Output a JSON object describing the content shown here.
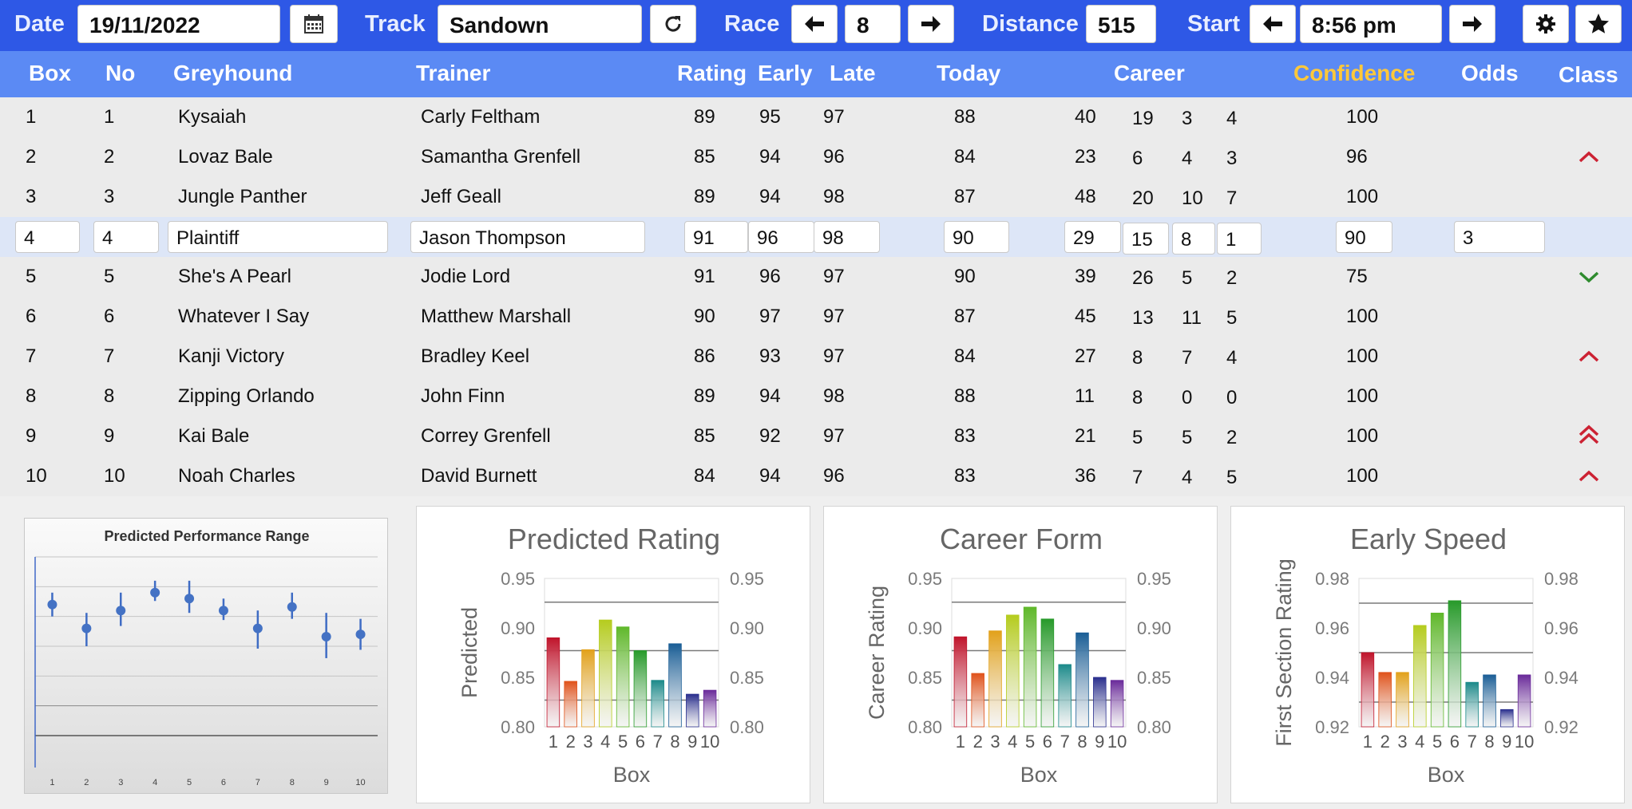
{
  "topbar": {
    "date_label": "Date",
    "date_value": "19/11/2022",
    "track_label": "Track",
    "track_value": "Sandown",
    "race_label": "Race",
    "race_value": "8",
    "distance_label": "Distance",
    "distance_value": "515",
    "start_label": "Start",
    "start_value": "8:56 pm"
  },
  "columns": {
    "box": "Box",
    "no": "No",
    "greyhound": "Greyhound",
    "trainer": "Trainer",
    "rating": "Rating",
    "early": "Early",
    "late": "Late",
    "today": "Today",
    "career": "Career",
    "confidence": "Confidence",
    "odds": "Odds",
    "class": "Class"
  },
  "rows": [
    {
      "box": "1",
      "no": "1",
      "greyhound": "Kysaiah",
      "trainer": "Carly Feltham",
      "rating": "89",
      "early": "95",
      "late": "97",
      "today": "88",
      "c1": "40",
      "c2": "19",
      "c3": "3",
      "c4": "4",
      "confidence": "100",
      "odds": "",
      "class_icon": ""
    },
    {
      "box": "2",
      "no": "2",
      "greyhound": "Lovaz Bale",
      "trainer": "Samantha Grenfell",
      "rating": "85",
      "early": "94",
      "late": "96",
      "today": "84",
      "c1": "23",
      "c2": "6",
      "c3": "4",
      "c4": "3",
      "confidence": "96",
      "odds": "",
      "class_icon": "chevron-up-icon"
    },
    {
      "box": "3",
      "no": "3",
      "greyhound": "Jungle Panther",
      "trainer": "Jeff Geall",
      "rating": "89",
      "early": "94",
      "late": "98",
      "today": "87",
      "c1": "48",
      "c2": "20",
      "c3": "10",
      "c4": "7",
      "confidence": "100",
      "odds": "",
      "class_icon": ""
    },
    {
      "box": "4",
      "no": "4",
      "greyhound": "Plaintiff",
      "trainer": "Jason Thompson",
      "rating": "91",
      "early": "96",
      "late": "98",
      "today": "90",
      "c1": "29",
      "c2": "15",
      "c3": "8",
      "c4": "1",
      "confidence": "90",
      "odds": "3",
      "class_icon": ""
    },
    {
      "box": "5",
      "no": "5",
      "greyhound": "She's A Pearl",
      "trainer": "Jodie Lord",
      "rating": "91",
      "early": "96",
      "late": "97",
      "today": "90",
      "c1": "39",
      "c2": "26",
      "c3": "5",
      "c4": "2",
      "confidence": "75",
      "odds": "",
      "class_icon": "chevron-down-icon"
    },
    {
      "box": "6",
      "no": "6",
      "greyhound": "Whatever I Say",
      "trainer": "Matthew Marshall",
      "rating": "90",
      "early": "97",
      "late": "97",
      "today": "87",
      "c1": "45",
      "c2": "13",
      "c3": "11",
      "c4": "5",
      "confidence": "100",
      "odds": "",
      "class_icon": ""
    },
    {
      "box": "7",
      "no": "7",
      "greyhound": "Kanji Victory",
      "trainer": "Bradley Keel",
      "rating": "86",
      "early": "93",
      "late": "97",
      "today": "84",
      "c1": "27",
      "c2": "8",
      "c3": "7",
      "c4": "4",
      "confidence": "100",
      "odds": "",
      "class_icon": "chevron-up-icon"
    },
    {
      "box": "8",
      "no": "8",
      "greyhound": "Zipping Orlando",
      "trainer": "John Finn",
      "rating": "89",
      "early": "94",
      "late": "98",
      "today": "88",
      "c1": "11",
      "c2": "8",
      "c3": "0",
      "c4": "0",
      "confidence": "100",
      "odds": "",
      "class_icon": ""
    },
    {
      "box": "9",
      "no": "9",
      "greyhound": "Kai Bale",
      "trainer": "Correy Grenfell",
      "rating": "85",
      "early": "92",
      "late": "97",
      "today": "83",
      "c1": "21",
      "c2": "5",
      "c3": "5",
      "c4": "2",
      "confidence": "100",
      "odds": "",
      "class_icon": "double-chevron-up-icon"
    },
    {
      "box": "10",
      "no": "10",
      "greyhound": "Noah Charles",
      "trainer": "David Burnett",
      "rating": "84",
      "early": "94",
      "late": "96",
      "today": "83",
      "c1": "36",
      "c2": "7",
      "c3": "4",
      "c4": "5",
      "confidence": "100",
      "odds": "",
      "class_icon": "chevron-up-icon"
    }
  ],
  "colors": {
    "topbar": "#2e58e6",
    "header": "#5b8af4",
    "confidence_header": "#ffc83a",
    "class_up": "#cc2233",
    "class_down": "#2e8b2e"
  },
  "chart_data": [
    {
      "type": "scatter",
      "title": "Predicted Performance Range",
      "x": [
        1,
        2,
        3,
        4,
        5,
        6,
        7,
        8,
        9,
        10
      ],
      "y": [
        0.91,
        0.89,
        0.905,
        0.92,
        0.915,
        0.905,
        0.89,
        0.908,
        0.883,
        0.885
      ],
      "err_low": [
        0.9,
        0.875,
        0.892,
        0.913,
        0.903,
        0.897,
        0.873,
        0.898,
        0.865,
        0.872
      ],
      "err_high": [
        0.92,
        0.903,
        0.92,
        0.93,
        0.93,
        0.915,
        0.905,
        0.92,
        0.903,
        0.898
      ],
      "ylim": [
        0.8,
        0.95
      ],
      "grid": true
    },
    {
      "type": "bar",
      "title": "Predicted Rating",
      "xlabel": "Box",
      "ylabel": "Predicted",
      "categories": [
        "1",
        "2",
        "3",
        "4",
        "5",
        "6",
        "7",
        "8",
        "9",
        "10"
      ],
      "values": [
        0.89,
        0.846,
        0.878,
        0.908,
        0.901,
        0.877,
        0.847,
        0.884,
        0.833,
        0.837
      ],
      "ylim": [
        0.8,
        0.95
      ],
      "yticks": [
        "0.80",
        "0.85",
        "0.90",
        "0.95"
      ],
      "reference_lines": [
        0.827,
        0.877,
        0.926
      ]
    },
    {
      "type": "bar",
      "title": "Career Form",
      "xlabel": "Box",
      "ylabel": "Career Rating",
      "categories": [
        "1",
        "2",
        "3",
        "4",
        "5",
        "6",
        "7",
        "8",
        "9",
        "10"
      ],
      "values": [
        0.891,
        0.854,
        0.897,
        0.913,
        0.921,
        0.909,
        0.863,
        0.895,
        0.85,
        0.847
      ],
      "ylim": [
        0.8,
        0.95
      ],
      "yticks": [
        "0.80",
        "0.85",
        "0.90",
        "0.95"
      ],
      "reference_lines": [
        0.827,
        0.877,
        0.926
      ]
    },
    {
      "type": "bar",
      "title": "Early Speed",
      "xlabel": "Box",
      "ylabel": "First Section Rating",
      "categories": [
        "1",
        "2",
        "3",
        "4",
        "5",
        "6",
        "7",
        "8",
        "9",
        "10"
      ],
      "values": [
        0.95,
        0.942,
        0.942,
        0.961,
        0.966,
        0.971,
        0.938,
        0.941,
        0.927,
        0.941
      ],
      "ylim": [
        0.92,
        0.98
      ],
      "yticks": [
        "0.92",
        "0.94",
        "0.96",
        "0.98"
      ],
      "reference_lines": [
        0.93,
        0.95,
        0.97
      ]
    }
  ]
}
